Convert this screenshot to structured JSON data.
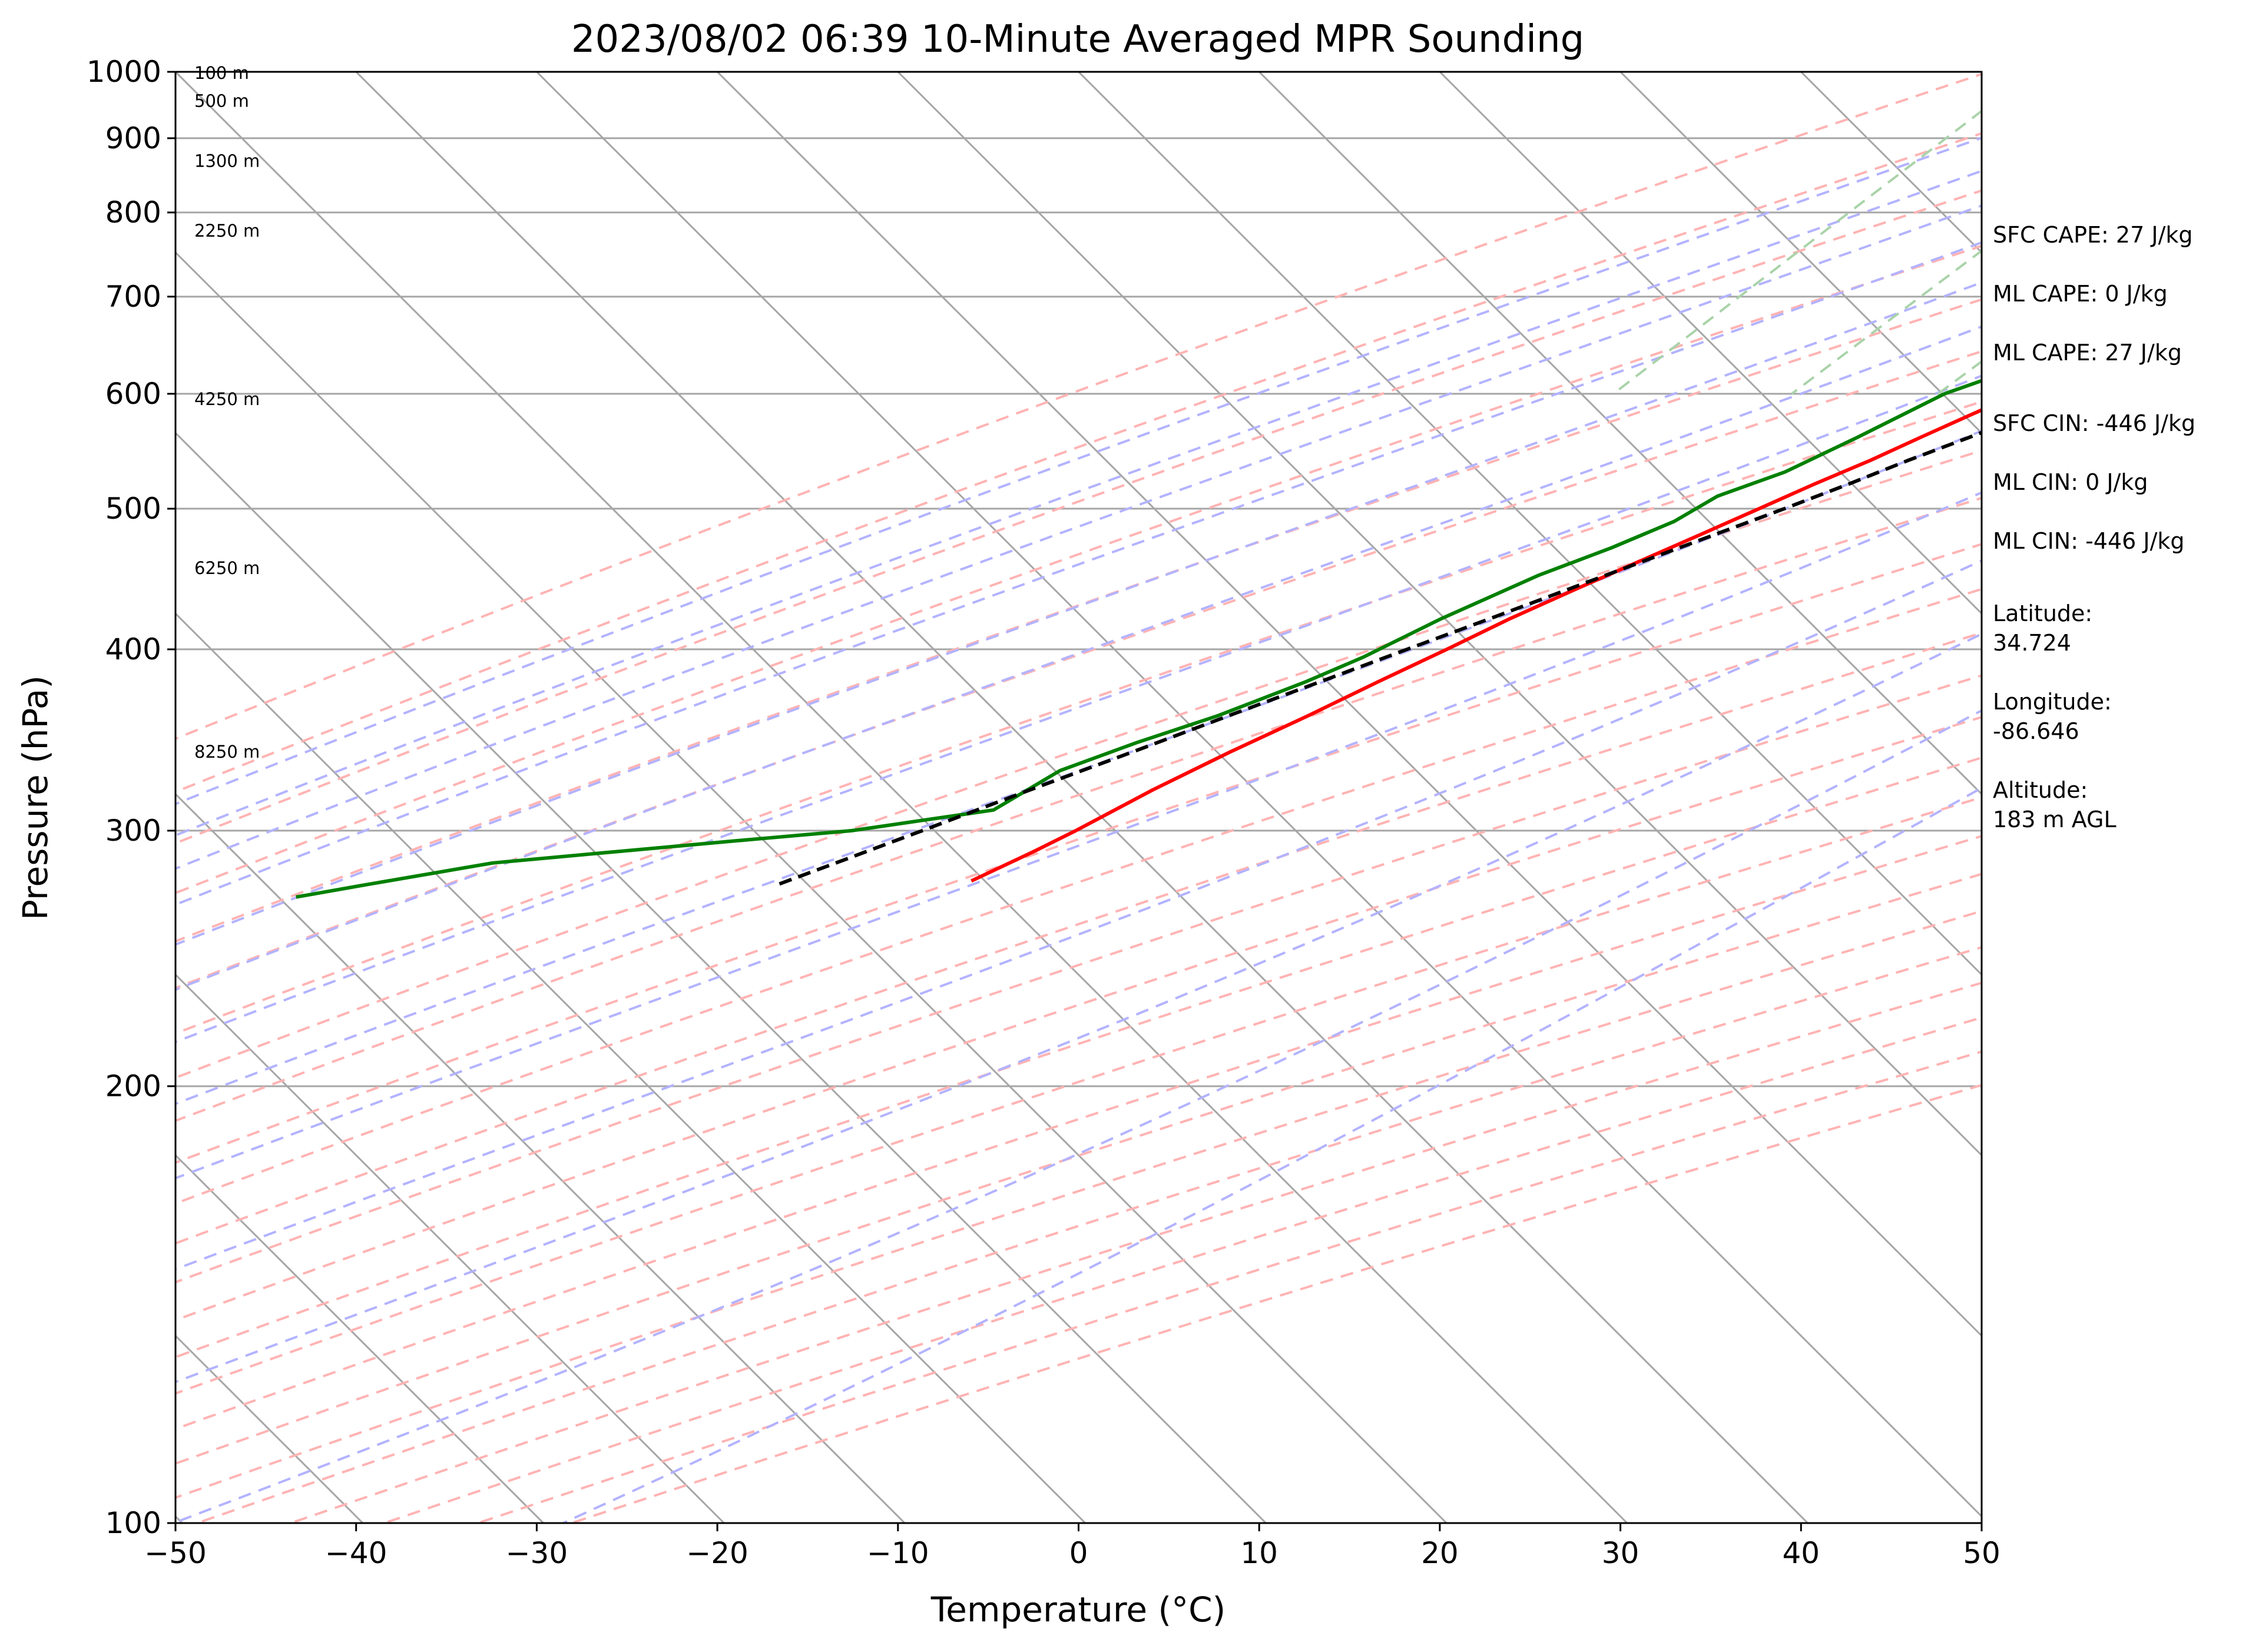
{
  "chart_data": {
    "type": "line",
    "title": "2023/08/02 06:39 10-Minute Averaged MPR Sounding",
    "xlabel": "Temperature (°C)",
    "ylabel": "Pressure (hPa)",
    "xlim": [
      -50,
      50
    ],
    "ylim": [
      1000,
      100
    ],
    "y_scale": "log",
    "skew": true,
    "grid": true,
    "x_ticks": [
      "−50",
      "−40",
      "−30",
      "−20",
      "−10",
      "0",
      "10",
      "20",
      "30",
      "40",
      "50"
    ],
    "x_tick_values": [
      -50,
      -40,
      -30,
      -20,
      -10,
      0,
      10,
      20,
      30,
      40,
      50
    ],
    "y_ticks": [
      "100",
      "200",
      "300",
      "400",
      "500",
      "600",
      "700",
      "800",
      "900",
      "1000"
    ],
    "y_tick_values": [
      100,
      200,
      300,
      400,
      500,
      600,
      700,
      800,
      900,
      1000
    ],
    "series": [
      {
        "role": "temperature",
        "color": "#ff0000",
        "dash": "solid",
        "pressure": [
          1000,
          990,
          980,
          970,
          960,
          950,
          940,
          930,
          920,
          910,
          900,
          880,
          860,
          850,
          840,
          830,
          820,
          810,
          800,
          780,
          760,
          740,
          720,
          700,
          680,
          660,
          640,
          620,
          600,
          580,
          560,
          540,
          520,
          500,
          480,
          460,
          440,
          420,
          400,
          380,
          360,
          340,
          320,
          300,
          290,
          277
        ],
        "temperature": [
          23.0,
          24.4,
          25.2,
          25.0,
          24.0,
          22.5,
          20.9,
          19.2,
          17.5,
          15.5,
          13.6,
          12.4,
          11.0,
          10.6,
          10.0,
          9.4,
          8.5,
          7.9,
          7.0,
          5.5,
          4.0,
          2.3,
          0.5,
          -1.5,
          -3.3,
          -5.2,
          -7.0,
          -8.8,
          -10.5,
          -12.0,
          -13.5,
          -15.0,
          -16.8,
          -18.5,
          -20.3,
          -22.2,
          -24.2,
          -26.2,
          -28.0,
          -30.0,
          -32.0,
          -34.3,
          -36.5,
          -38.5,
          -39.7,
          -41.5
        ]
      },
      {
        "role": "dewpoint",
        "color": "#008000",
        "dash": "solid",
        "pressure": [
          1000,
          995,
          985,
          970,
          955,
          940,
          925,
          900,
          880,
          860,
          840,
          820,
          800,
          770,
          740,
          710,
          680,
          650,
          620,
          600,
          560,
          530,
          510,
          490,
          470,
          450,
          420,
          395,
          380,
          360,
          345,
          330,
          310,
          300,
          295,
          290,
          285,
          275,
          270
        ],
        "temperature": [
          17.5,
          16.2,
          15.8,
          13.5,
          12.4,
          11.6,
          10.8,
          10.9,
          8.4,
          7.2,
          5.8,
          5.0,
          3.8,
          -1.0,
          -4.3,
          -6.8,
          -9.0,
          -11.0,
          -12.5,
          -14.6,
          -17.0,
          -19.1,
          -21.5,
          -22.5,
          -24.5,
          -27.0,
          -30.0,
          -32.2,
          -34.0,
          -37.0,
          -40.0,
          -42.7,
          -44.2,
          -50.9,
          -57.0,
          -63.0,
          -69.0,
          -75.0,
          -78.0
        ]
      },
      {
        "role": "parcel",
        "color": "#000000",
        "dash": "dashed",
        "pressure": [
          1000,
          980,
          960,
          940,
          920,
          910,
          900,
          880,
          860,
          840,
          820,
          800,
          780,
          760,
          740,
          720,
          700,
          680,
          660,
          640,
          620,
          600,
          580,
          560,
          540,
          520,
          500,
          480,
          460,
          440,
          420,
          400,
          380,
          360,
          340,
          320,
          300,
          285,
          275
        ],
        "temperature": [
          23.0,
          20.9,
          18.8,
          16.8,
          14.4,
          13.3,
          12.7,
          11.7,
          10.7,
          9.6,
          8.5,
          7.3,
          6.2,
          5.0,
          3.6,
          2.4,
          1.0,
          -0.6,
          -2.1,
          -3.6,
          -5.3,
          -7.1,
          -8.9,
          -10.8,
          -12.9,
          -14.9,
          -17.1,
          -19.5,
          -22.0,
          -24.6,
          -27.3,
          -30.2,
          -33.2,
          -36.4,
          -39.7,
          -43.3,
          -47.0,
          -50.0,
          -52.1
        ]
      }
    ],
    "height_labels": [
      "100 m",
      "500 m",
      "1300 m",
      "2250 m",
      "4250 m",
      "6250 m",
      "8250 m"
    ],
    "height_label_pressures": [
      998,
      955,
      868,
      777,
      595,
      455,
      340
    ]
  },
  "side_panel": {
    "sfc_cape": "SFC CAPE: 27 J/kg",
    "ml_cape_1": "ML CAPE: 0 J/kg",
    "ml_cape_2": "ML CAPE: 27 J/kg",
    "sfc_cin": "SFC CIN: -446 J/kg",
    "ml_cin_1": "ML CIN: 0 J/kg",
    "ml_cin_2": "ML CIN: -446 J/kg",
    "latitude_label": "Latitude:",
    "latitude_value": "34.724",
    "longitude_label": "Longitude:",
    "longitude_value": "-86.646",
    "altitude_label": "Altitude:",
    "altitude_value": "183 m AGL"
  },
  "colors": {
    "isotherm": "#a6a6a6",
    "isobar": "#a6a6a6",
    "dry_adiabat": "#ffb3b3",
    "moist_adiabat": "#b3b3ff",
    "mixing_ratio": "#a9d3a9"
  }
}
